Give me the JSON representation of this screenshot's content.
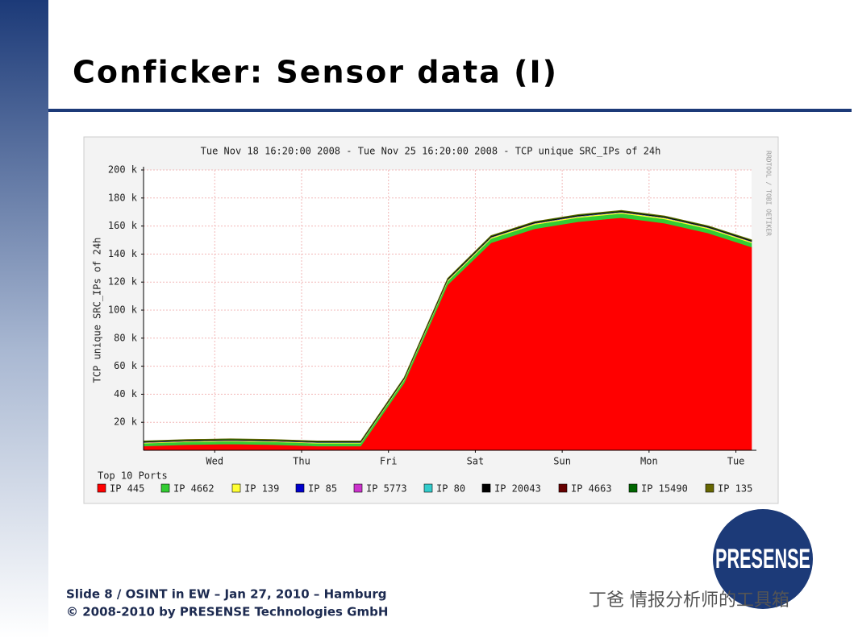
{
  "slide_title": "Conficker: Sensor data (I)",
  "footer": [
    "Slide 8 / OSINT in EW – Jan 27, 2010 – Hamburg",
    "© 2008-2010 by PRESENSE Technologies GmbH"
  ],
  "logo": "PRESENSE",
  "watermark": "丁爸 情报分析师的工具箱",
  "chart_data": {
    "type": "stacked_area",
    "title": "Tue Nov 18 16:20:00 2008 - Tue Nov 25 16:20:00 2008 - TCP unique SRC_IPs of 24h",
    "ylabel": "TCP unique SRC_IPs of 24h",
    "side_note": "RRDTOOL / TOBI OETIKER",
    "legend_title": "Top 10 Ports",
    "x": [
      0,
      12,
      24,
      36,
      48,
      60,
      72,
      84,
      96,
      108,
      120,
      132,
      144,
      156,
      168
    ],
    "xlim": [
      0,
      168
    ],
    "xticks": [
      {
        "value": 19.67,
        "label": "Wed"
      },
      {
        "value": 43.67,
        "label": "Thu"
      },
      {
        "value": 67.67,
        "label": "Fri"
      },
      {
        "value": 91.67,
        "label": "Sat"
      },
      {
        "value": 115.67,
        "label": "Sun"
      },
      {
        "value": 139.67,
        "label": "Mon"
      },
      {
        "value": 163.67,
        "label": "Tue"
      }
    ],
    "ylim": [
      0,
      200000
    ],
    "yticks": [
      {
        "value": 20000,
        "label": "20 k"
      },
      {
        "value": 40000,
        "label": "40 k"
      },
      {
        "value": 60000,
        "label": "60 k"
      },
      {
        "value": 80000,
        "label": "80 k"
      },
      {
        "value": 100000,
        "label": "100 k"
      },
      {
        "value": 120000,
        "label": "120 k"
      },
      {
        "value": 140000,
        "label": "140 k"
      },
      {
        "value": 160000,
        "label": "160 k"
      },
      {
        "value": 180000,
        "label": "180 k"
      },
      {
        "value": 200000,
        "label": "200 k"
      }
    ],
    "grid": true,
    "series": [
      {
        "name": "IP 445",
        "color": "#ff0000",
        "values": [
          3000,
          4000,
          4500,
          4000,
          3000,
          3000,
          48000,
          118000,
          148000,
          158000,
          163000,
          166000,
          162000,
          155000,
          145000
        ]
      },
      {
        "name": "IP 4662",
        "color": "#33cc33",
        "values": [
          2000,
          2000,
          2000,
          2000,
          2000,
          2000,
          2000,
          2500,
          3000,
          3000,
          3000,
          3000,
          3000,
          3000,
          3000
        ]
      },
      {
        "name": "IP 139",
        "color": "#ffff33",
        "values": [
          500,
          500,
          500,
          500,
          500,
          500,
          700,
          800,
          800,
          800,
          800,
          800,
          800,
          800,
          800
        ]
      },
      {
        "name": "IP 85",
        "color": "#0000cc",
        "values": [
          100,
          100,
          100,
          100,
          100,
          100,
          100,
          100,
          100,
          100,
          100,
          100,
          100,
          100,
          100
        ]
      },
      {
        "name": "IP 5773",
        "color": "#cc33cc",
        "values": [
          100,
          100,
          100,
          100,
          100,
          100,
          100,
          100,
          100,
          100,
          100,
          100,
          100,
          100,
          100
        ]
      },
      {
        "name": "IP 80",
        "color": "#33cccc",
        "values": [
          100,
          100,
          100,
          100,
          100,
          100,
          100,
          100,
          100,
          100,
          100,
          100,
          100,
          100,
          100
        ]
      },
      {
        "name": "IP 20043",
        "color": "#000000",
        "values": [
          300,
          300,
          300,
          300,
          300,
          300,
          400,
          500,
          500,
          500,
          500,
          500,
          500,
          500,
          500
        ]
      },
      {
        "name": "IP 4663",
        "color": "#660000",
        "values": [
          100,
          100,
          100,
          100,
          100,
          100,
          100,
          100,
          100,
          100,
          100,
          100,
          100,
          100,
          100
        ]
      },
      {
        "name": "IP 15490",
        "color": "#006600",
        "values": [
          300,
          300,
          300,
          300,
          300,
          300,
          300,
          300,
          300,
          300,
          300,
          300,
          300,
          300,
          300
        ]
      },
      {
        "name": "IP 135",
        "color": "#666600",
        "values": [
          200,
          200,
          200,
          200,
          200,
          200,
          200,
          200,
          200,
          200,
          200,
          200,
          200,
          200,
          200
        ]
      }
    ]
  }
}
